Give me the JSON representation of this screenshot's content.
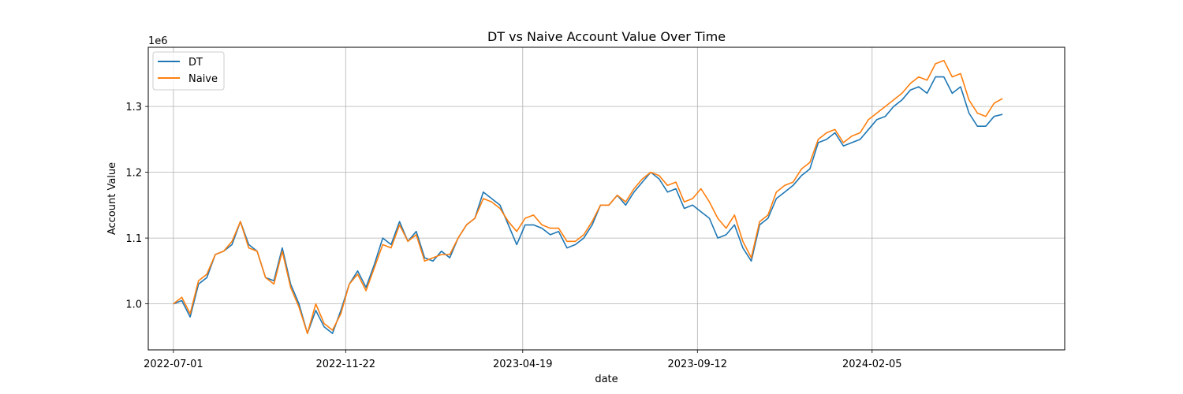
{
  "chart_data": {
    "type": "line",
    "title": "DT vs Naive Account Value Over Time",
    "xlabel": "date",
    "ylabel": "Account Value",
    "y_offset_label": "1e6",
    "x_range": [
      "2022-06-10",
      "2024-07-15"
    ],
    "ylim": [
      0.93,
      1.39
    ],
    "y_ticks": [
      1.0,
      1.1,
      1.2,
      1.3
    ],
    "y_tick_labels": [
      "1.0",
      "1.1",
      "1.2",
      "1.3"
    ],
    "x_ticks": [
      "2022-07-01",
      "2022-11-22",
      "2023-04-19",
      "2023-09-12",
      "2024-02-05"
    ],
    "x_tick_labels": [
      "2022-07-01",
      "2022-11-22",
      "2023-04-19",
      "2023-09-12",
      "2024-02-05"
    ],
    "grid": true,
    "legend_position": "upper left",
    "series": [
      {
        "name": "DT",
        "color": "#1f77b4",
        "points": [
          [
            "2022-07-01",
            1.0
          ],
          [
            "2022-07-08",
            1.005
          ],
          [
            "2022-07-15",
            0.98
          ],
          [
            "2022-07-22",
            1.03
          ],
          [
            "2022-07-29",
            1.04
          ],
          [
            "2022-08-05",
            1.075
          ],
          [
            "2022-08-12",
            1.08
          ],
          [
            "2022-08-19",
            1.09
          ],
          [
            "2022-08-26",
            1.125
          ],
          [
            "2022-09-02",
            1.09
          ],
          [
            "2022-09-09",
            1.08
          ],
          [
            "2022-09-16",
            1.04
          ],
          [
            "2022-09-23",
            1.035
          ],
          [
            "2022-09-30",
            1.085
          ],
          [
            "2022-10-07",
            1.03
          ],
          [
            "2022-10-14",
            1.0
          ],
          [
            "2022-10-21",
            0.955
          ],
          [
            "2022-10-28",
            0.99
          ],
          [
            "2022-11-04",
            0.965
          ],
          [
            "2022-11-11",
            0.955
          ],
          [
            "2022-11-18",
            0.99
          ],
          [
            "2022-11-25",
            1.03
          ],
          [
            "2022-12-02",
            1.05
          ],
          [
            "2022-12-09",
            1.025
          ],
          [
            "2022-12-16",
            1.06
          ],
          [
            "2022-12-23",
            1.1
          ],
          [
            "2022-12-30",
            1.09
          ],
          [
            "2023-01-06",
            1.125
          ],
          [
            "2023-01-13",
            1.095
          ],
          [
            "2023-01-20",
            1.11
          ],
          [
            "2023-01-27",
            1.07
          ],
          [
            "2023-02-03",
            1.065
          ],
          [
            "2023-02-10",
            1.08
          ],
          [
            "2023-02-17",
            1.07
          ],
          [
            "2023-02-24",
            1.1
          ],
          [
            "2023-03-03",
            1.12
          ],
          [
            "2023-03-10",
            1.13
          ],
          [
            "2023-03-17",
            1.17
          ],
          [
            "2023-03-24",
            1.16
          ],
          [
            "2023-03-31",
            1.15
          ],
          [
            "2023-04-07",
            1.12
          ],
          [
            "2023-04-14",
            1.09
          ],
          [
            "2023-04-21",
            1.12
          ],
          [
            "2023-04-28",
            1.12
          ],
          [
            "2023-05-05",
            1.115
          ],
          [
            "2023-05-12",
            1.105
          ],
          [
            "2023-05-19",
            1.11
          ],
          [
            "2023-05-26",
            1.085
          ],
          [
            "2023-06-02",
            1.09
          ],
          [
            "2023-06-09",
            1.1
          ],
          [
            "2023-06-16",
            1.12
          ],
          [
            "2023-06-23",
            1.15
          ],
          [
            "2023-06-30",
            1.15
          ],
          [
            "2023-07-07",
            1.165
          ],
          [
            "2023-07-14",
            1.15
          ],
          [
            "2023-07-21",
            1.17
          ],
          [
            "2023-07-28",
            1.185
          ],
          [
            "2023-08-04",
            1.2
          ],
          [
            "2023-08-11",
            1.19
          ],
          [
            "2023-08-18",
            1.17
          ],
          [
            "2023-08-25",
            1.175
          ],
          [
            "2023-09-01",
            1.145
          ],
          [
            "2023-09-08",
            1.15
          ],
          [
            "2023-09-15",
            1.14
          ],
          [
            "2023-09-22",
            1.13
          ],
          [
            "2023-09-29",
            1.1
          ],
          [
            "2023-10-06",
            1.105
          ],
          [
            "2023-10-13",
            1.12
          ],
          [
            "2023-10-20",
            1.085
          ],
          [
            "2023-10-27",
            1.065
          ],
          [
            "2023-11-03",
            1.12
          ],
          [
            "2023-11-10",
            1.13
          ],
          [
            "2023-11-17",
            1.16
          ],
          [
            "2023-11-24",
            1.17
          ],
          [
            "2023-12-01",
            1.18
          ],
          [
            "2023-12-08",
            1.195
          ],
          [
            "2023-12-15",
            1.205
          ],
          [
            "2023-12-22",
            1.245
          ],
          [
            "2023-12-29",
            1.25
          ],
          [
            "2024-01-05",
            1.26
          ],
          [
            "2024-01-12",
            1.24
          ],
          [
            "2024-01-19",
            1.245
          ],
          [
            "2024-01-26",
            1.25
          ],
          [
            "2024-02-02",
            1.265
          ],
          [
            "2024-02-09",
            1.28
          ],
          [
            "2024-02-16",
            1.285
          ],
          [
            "2024-02-23",
            1.3
          ],
          [
            "2024-03-01",
            1.31
          ],
          [
            "2024-03-08",
            1.325
          ],
          [
            "2024-03-15",
            1.33
          ],
          [
            "2024-03-22",
            1.32
          ],
          [
            "2024-03-29",
            1.345
          ],
          [
            "2024-04-05",
            1.345
          ],
          [
            "2024-04-12",
            1.32
          ],
          [
            "2024-04-19",
            1.33
          ],
          [
            "2024-04-26",
            1.29
          ],
          [
            "2024-05-03",
            1.27
          ],
          [
            "2024-05-10",
            1.27
          ],
          [
            "2024-05-17",
            1.285
          ],
          [
            "2024-05-24",
            1.288
          ]
        ]
      },
      {
        "name": "Naive",
        "color": "#ff7f0e",
        "points": [
          [
            "2022-07-01",
            1.0
          ],
          [
            "2022-07-08",
            1.01
          ],
          [
            "2022-07-15",
            0.985
          ],
          [
            "2022-07-22",
            1.035
          ],
          [
            "2022-07-29",
            1.045
          ],
          [
            "2022-08-05",
            1.075
          ],
          [
            "2022-08-12",
            1.08
          ],
          [
            "2022-08-19",
            1.095
          ],
          [
            "2022-08-26",
            1.125
          ],
          [
            "2022-09-02",
            1.085
          ],
          [
            "2022-09-09",
            1.08
          ],
          [
            "2022-09-16",
            1.04
          ],
          [
            "2022-09-23",
            1.03
          ],
          [
            "2022-09-30",
            1.08
          ],
          [
            "2022-10-07",
            1.025
          ],
          [
            "2022-10-14",
            0.995
          ],
          [
            "2022-10-21",
            0.955
          ],
          [
            "2022-10-28",
            1.0
          ],
          [
            "2022-11-04",
            0.97
          ],
          [
            "2022-11-11",
            0.96
          ],
          [
            "2022-11-18",
            0.985
          ],
          [
            "2022-11-25",
            1.03
          ],
          [
            "2022-12-02",
            1.045
          ],
          [
            "2022-12-09",
            1.02
          ],
          [
            "2022-12-16",
            1.055
          ],
          [
            "2022-12-23",
            1.09
          ],
          [
            "2022-12-30",
            1.085
          ],
          [
            "2023-01-06",
            1.12
          ],
          [
            "2023-01-13",
            1.095
          ],
          [
            "2023-01-20",
            1.105
          ],
          [
            "2023-01-27",
            1.065
          ],
          [
            "2023-02-03",
            1.07
          ],
          [
            "2023-02-10",
            1.075
          ],
          [
            "2023-02-17",
            1.075
          ],
          [
            "2023-02-24",
            1.1
          ],
          [
            "2023-03-03",
            1.12
          ],
          [
            "2023-03-10",
            1.13
          ],
          [
            "2023-03-17",
            1.16
          ],
          [
            "2023-03-24",
            1.155
          ],
          [
            "2023-03-31",
            1.145
          ],
          [
            "2023-04-07",
            1.125
          ],
          [
            "2023-04-14",
            1.11
          ],
          [
            "2023-04-21",
            1.13
          ],
          [
            "2023-04-28",
            1.135
          ],
          [
            "2023-05-05",
            1.12
          ],
          [
            "2023-05-12",
            1.115
          ],
          [
            "2023-05-19",
            1.115
          ],
          [
            "2023-05-26",
            1.095
          ],
          [
            "2023-06-02",
            1.095
          ],
          [
            "2023-06-09",
            1.105
          ],
          [
            "2023-06-16",
            1.125
          ],
          [
            "2023-06-23",
            1.15
          ],
          [
            "2023-06-30",
            1.15
          ],
          [
            "2023-07-07",
            1.165
          ],
          [
            "2023-07-14",
            1.155
          ],
          [
            "2023-07-21",
            1.175
          ],
          [
            "2023-07-28",
            1.19
          ],
          [
            "2023-08-04",
            1.2
          ],
          [
            "2023-08-11",
            1.195
          ],
          [
            "2023-08-18",
            1.18
          ],
          [
            "2023-08-25",
            1.185
          ],
          [
            "2023-09-01",
            1.155
          ],
          [
            "2023-09-08",
            1.16
          ],
          [
            "2023-09-15",
            1.175
          ],
          [
            "2023-09-22",
            1.155
          ],
          [
            "2023-09-29",
            1.13
          ],
          [
            "2023-10-06",
            1.115
          ],
          [
            "2023-10-13",
            1.135
          ],
          [
            "2023-10-20",
            1.095
          ],
          [
            "2023-10-27",
            1.07
          ],
          [
            "2023-11-03",
            1.125
          ],
          [
            "2023-11-10",
            1.135
          ],
          [
            "2023-11-17",
            1.17
          ],
          [
            "2023-11-24",
            1.18
          ],
          [
            "2023-12-01",
            1.185
          ],
          [
            "2023-12-08",
            1.205
          ],
          [
            "2023-12-15",
            1.215
          ],
          [
            "2023-12-22",
            1.25
          ],
          [
            "2023-12-29",
            1.26
          ],
          [
            "2024-01-05",
            1.265
          ],
          [
            "2024-01-12",
            1.245
          ],
          [
            "2024-01-19",
            1.255
          ],
          [
            "2024-01-26",
            1.26
          ],
          [
            "2024-02-02",
            1.28
          ],
          [
            "2024-02-09",
            1.29
          ],
          [
            "2024-02-16",
            1.3
          ],
          [
            "2024-02-23",
            1.31
          ],
          [
            "2024-03-01",
            1.32
          ],
          [
            "2024-03-08",
            1.335
          ],
          [
            "2024-03-15",
            1.345
          ],
          [
            "2024-03-22",
            1.34
          ],
          [
            "2024-03-29",
            1.365
          ],
          [
            "2024-04-05",
            1.37
          ],
          [
            "2024-04-12",
            1.345
          ],
          [
            "2024-04-19",
            1.35
          ],
          [
            "2024-04-26",
            1.31
          ],
          [
            "2024-05-03",
            1.29
          ],
          [
            "2024-05-10",
            1.285
          ],
          [
            "2024-05-17",
            1.305
          ],
          [
            "2024-05-24",
            1.312
          ]
        ]
      }
    ]
  }
}
